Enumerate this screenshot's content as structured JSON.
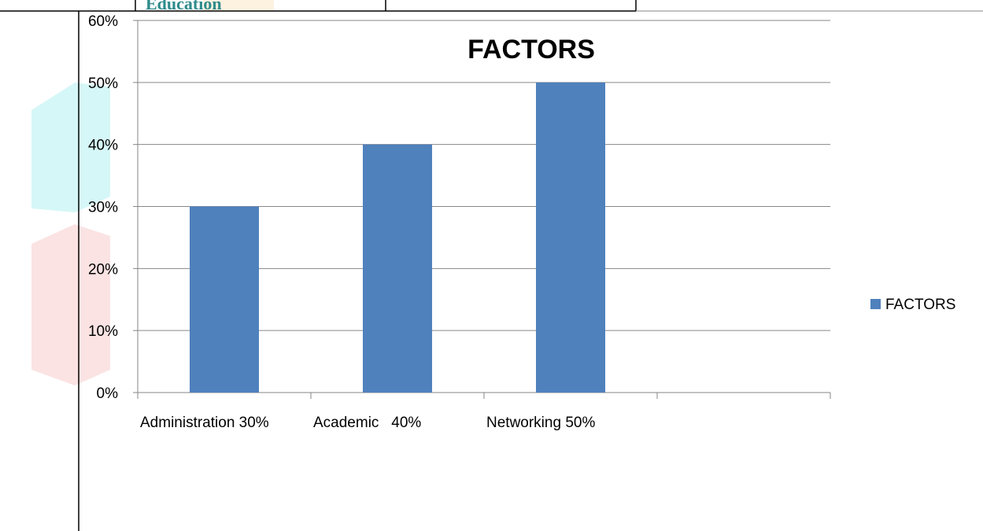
{
  "document": {
    "header_fragment": "Education"
  },
  "chart_data": {
    "type": "bar",
    "title": "FACTORS",
    "categories": [
      "Administration 30%",
      "Academic   40%",
      "Networking 50%",
      ""
    ],
    "series": [
      {
        "name": "FACTORS",
        "values": [
          30,
          40,
          50,
          null
        ]
      }
    ],
    "ylim": [
      0,
      60
    ],
    "yticks": [
      0,
      10,
      20,
      30,
      40,
      50,
      60
    ],
    "ytick_format": "percent",
    "grid": true,
    "legend_position": "right",
    "colors": {
      "bar": "#4f81bd",
      "grid": "#868686",
      "axis": "#868686",
      "watermark_teal": "#d6f7f7",
      "watermark_red": "#fbe3e3",
      "watermark_orange": "#fdf1e0"
    }
  }
}
